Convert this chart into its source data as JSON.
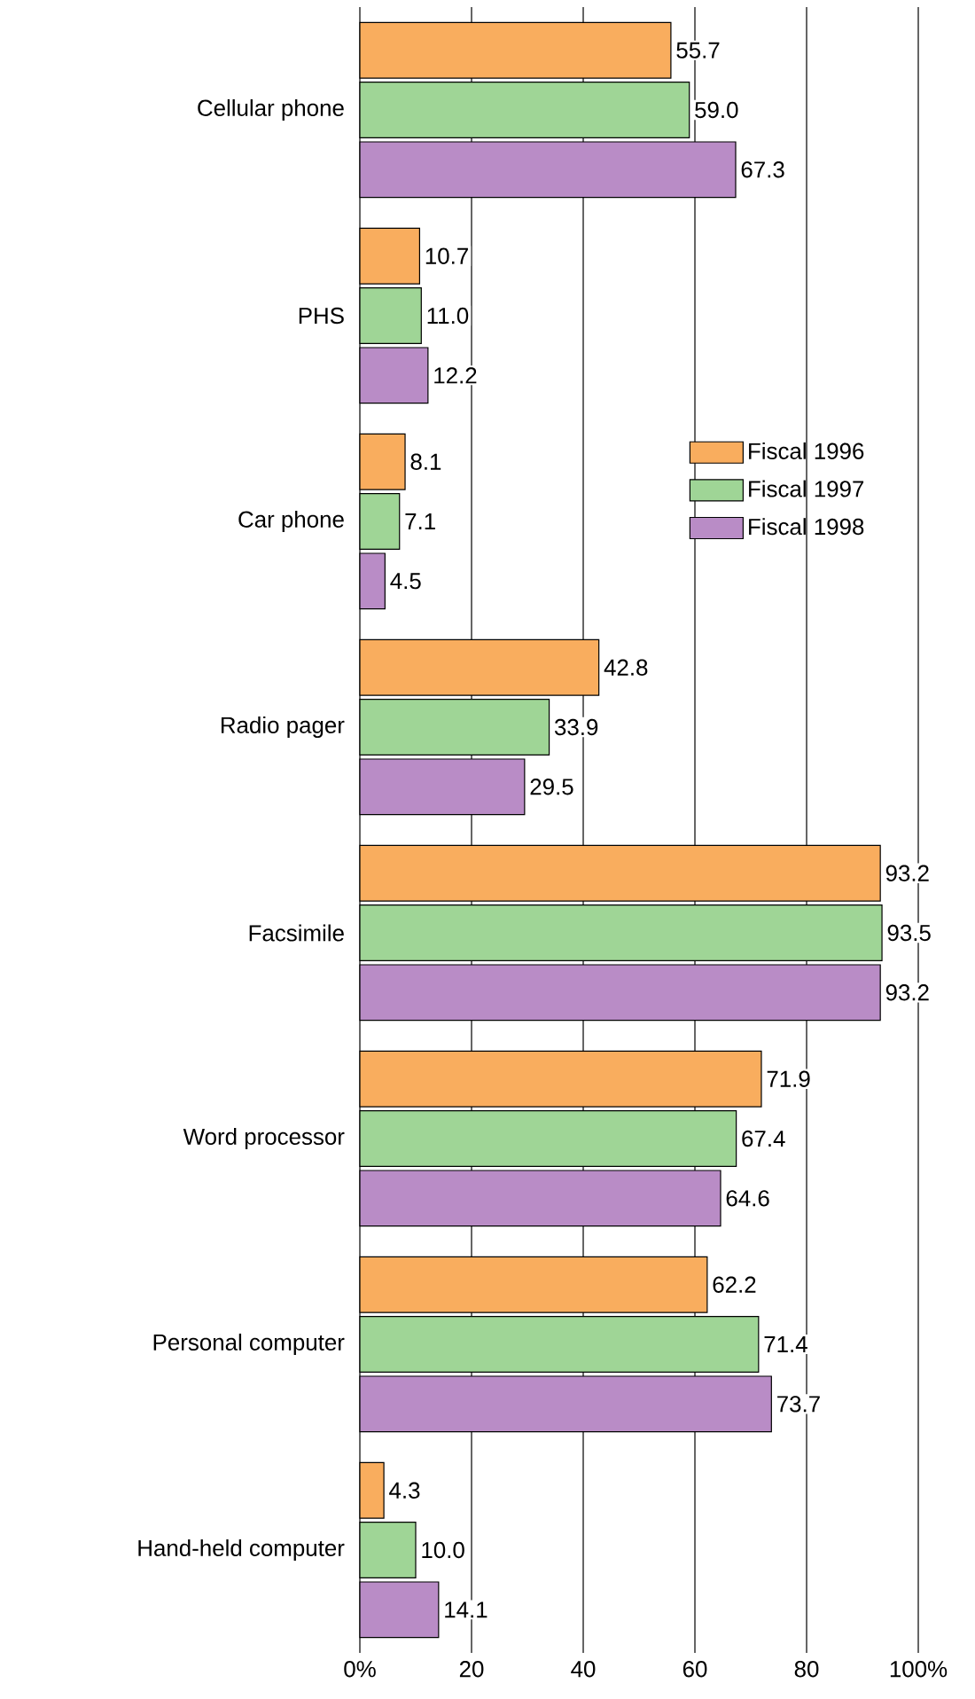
{
  "chart_data": {
    "type": "bar",
    "orientation": "horizontal",
    "categories": [
      "Cellular phone",
      "PHS",
      "Car phone",
      "Radio pager",
      "Facsimile",
      "Word processor",
      "Personal computer",
      "Hand-held computer"
    ],
    "series": [
      {
        "name": "Fiscal 1996",
        "color": "#f9ad5e",
        "values": [
          55.7,
          10.7,
          8.1,
          42.8,
          93.2,
          71.9,
          62.2,
          4.3
        ],
        "value_labels": [
          "55.7",
          "10.7",
          "8.1",
          "42.8",
          "93.2",
          "71.9",
          "62.2",
          "4.3"
        ]
      },
      {
        "name": "Fiscal 1997",
        "color": "#9fd596",
        "values": [
          59.0,
          11.0,
          7.1,
          33.9,
          93.5,
          67.4,
          71.4,
          10.0
        ],
        "value_labels": [
          "59.0",
          "11.0",
          "7.1",
          "33.9",
          "93.5",
          "67.4",
          "71.4",
          "10.0"
        ]
      },
      {
        "name": "Fiscal 1998",
        "color": "#b98cc6",
        "values": [
          67.3,
          12.2,
          4.5,
          29.5,
          93.2,
          64.6,
          73.7,
          14.1
        ],
        "value_labels": [
          "67.3",
          "12.2",
          "4.5",
          "29.5",
          "93.2",
          "64.6",
          "73.7",
          "14.1"
        ]
      }
    ],
    "xlim": [
      0,
      100
    ],
    "xticks": [
      {
        "value": 0,
        "label": "0%"
      },
      20,
      40,
      60,
      80,
      {
        "value": 100,
        "label": "100%"
      }
    ],
    "grid": "x",
    "legend": "top right"
  }
}
